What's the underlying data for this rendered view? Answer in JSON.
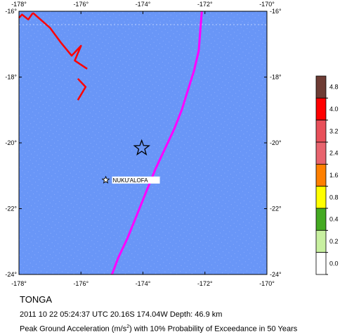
{
  "region": "TONGA",
  "event_line": "2011 10 22 05:24:37 UTC 20.16S 174.04W Depth: 46.9 km",
  "pga_line": {
    "prefix": "Peak Ground Acceleration (m/s",
    "sup": "2",
    "suffix": ") with 10% Probability of Exceedance in 50 Years"
  },
  "map": {
    "lon_ticks": [
      "-178°",
      "-176°",
      "-174°",
      "-172°",
      "-170°"
    ],
    "lat_ticks": [
      "-16°",
      "-18°",
      "-20°",
      "-22°",
      "-24°"
    ],
    "extent": {
      "lon": [
        -178,
        -170
      ],
      "lat": [
        -24,
        -16
      ]
    },
    "ocean_color": "#6996f7",
    "epicenter": {
      "lon": -174.04,
      "lat": -20.16,
      "icon": "star-icon"
    },
    "city": {
      "name": "NUKU'ALOFA",
      "lon": -175.2,
      "lat": -21.13,
      "icon": "star-icon"
    },
    "trench_line": {
      "color": "#ff00ff",
      "points": [
        [
          -172.1,
          -16
        ],
        [
          -172.15,
          -16.6
        ],
        [
          -172.2,
          -17.2
        ],
        [
          -172.35,
          -17.8
        ],
        [
          -172.55,
          -18.4
        ],
        [
          -172.75,
          -19
        ],
        [
          -173.0,
          -19.6
        ],
        [
          -173.3,
          -20.2
        ],
        [
          -173.6,
          -20.8
        ],
        [
          -173.9,
          -21.5
        ],
        [
          -174.2,
          -22.2
        ],
        [
          -174.5,
          -22.9
        ],
        [
          -174.8,
          -23.5
        ],
        [
          -175.0,
          -24
        ]
      ]
    },
    "red_lines": {
      "color": "#ff0000",
      "segments": [
        [
          [
            -178,
            -16.2
          ],
          [
            -177.9,
            -16.1
          ],
          [
            -177.7,
            -16.25
          ],
          [
            -177.55,
            -16.05
          ]
        ],
        [
          [
            -177.55,
            -16.05
          ],
          [
            -177.0,
            -16.5
          ],
          [
            -176.65,
            -16.95
          ],
          [
            -176.3,
            -17.35
          ],
          [
            -176.0,
            -17.05
          ],
          [
            -176.2,
            -17.5
          ],
          [
            -175.8,
            -17.75
          ]
        ],
        [
          [
            -176.1,
            -18.05
          ],
          [
            -175.85,
            -18.3
          ],
          [
            -176.1,
            -18.7
          ]
        ]
      ]
    }
  },
  "legend": {
    "title": "",
    "labels": [
      "4.8",
      "4.0",
      "3.2",
      "2.4",
      "1.6",
      "0.8",
      "0.4",
      "0.2",
      "0.0"
    ],
    "colors": [
      "#6e3c34",
      "#ff0000",
      "#e8505a",
      "#e8646e",
      "#ff8000",
      "#ffff00",
      "#44aa22",
      "#c8f0a0",
      "#ffffff"
    ]
  }
}
